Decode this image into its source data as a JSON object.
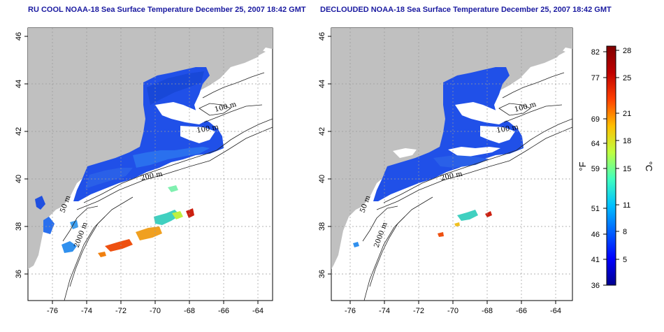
{
  "panels": [
    {
      "title": "RU COOL NOAA-18 Sea Surface Temperature December 25, 2007 18:42 GMT"
    },
    {
      "title": "DECLOUDED NOAA-18 Sea Surface Temperature December 25, 2007 18:42 GMT"
    }
  ],
  "map": {
    "x_ticks": [
      "-76",
      "-74",
      "-72",
      "-70",
      "-68",
      "-66",
      "-64"
    ],
    "y_ticks": [
      "36",
      "38",
      "40",
      "42",
      "44",
      "46"
    ],
    "contour_labels": [
      "100 m",
      "100 m",
      "200 m",
      "50 m",
      "2000 m"
    ],
    "land_color": "#c0c0c0",
    "gridlines": "dotted"
  },
  "colorbar": {
    "fahrenheit_ticks": [
      "82",
      "77",
      "69",
      "64",
      "59",
      "51",
      "46",
      "41",
      "36"
    ],
    "celsius_ticks": [
      "28",
      "25",
      "21",
      "18",
      "15",
      "11",
      "8",
      "5"
    ],
    "fahrenheit_unit": "°F",
    "celsius_unit": "°C",
    "colors": [
      "#00008f",
      "#0000ff",
      "#0060ff",
      "#00c0ff",
      "#40ffbf",
      "#bfff40",
      "#ffbf00",
      "#ff4000",
      "#bf0000",
      "#800000"
    ]
  }
}
